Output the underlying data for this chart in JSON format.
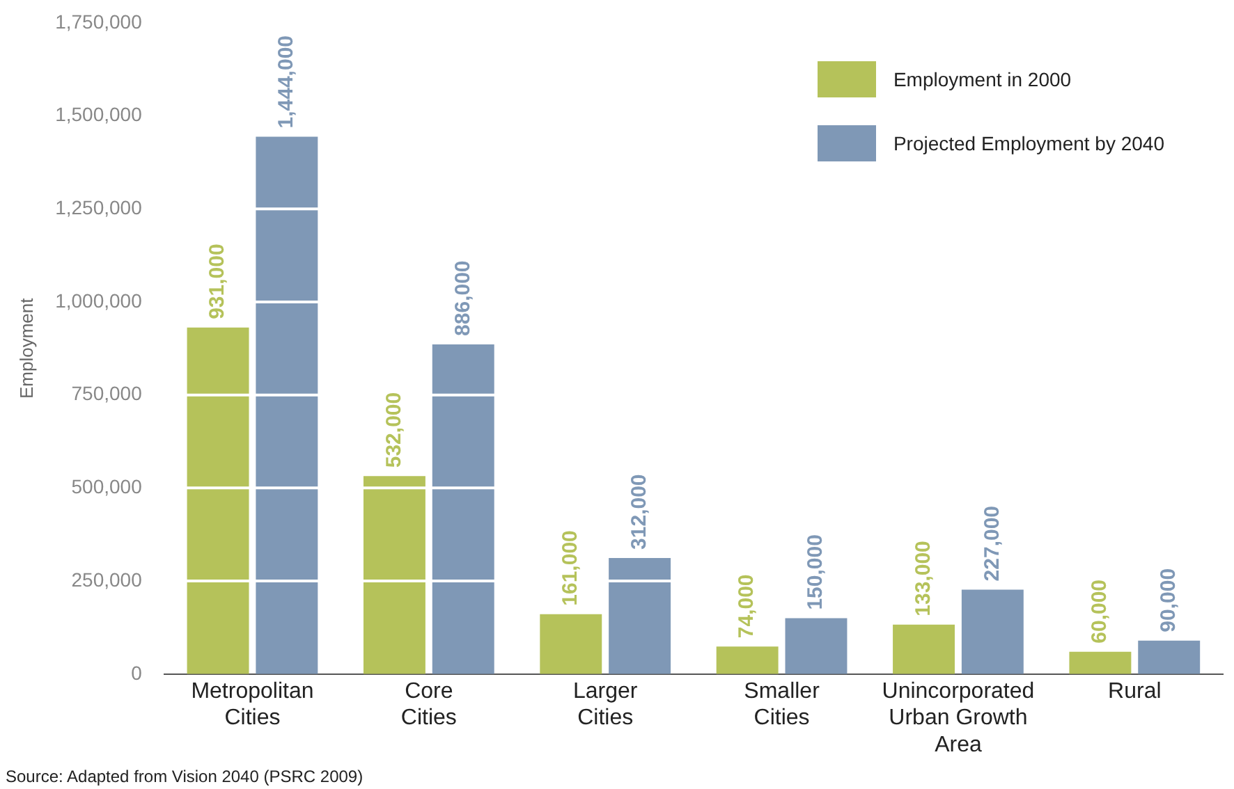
{
  "chart_data": {
    "type": "bar",
    "ylabel": "Employment",
    "categories": [
      "Metropolitan\nCities",
      "Core\nCities",
      "Larger\nCities",
      "Smaller\nCities",
      "Unincorporated\nUrban Growth\nArea",
      "Rural"
    ],
    "series": [
      {
        "name": "Employment in 2000",
        "color": "#b5c25a",
        "values": [
          931000,
          532000,
          161000,
          74000,
          133000,
          60000
        ],
        "value_labels": [
          "931,000",
          "532,000",
          "161,000",
          "74,000",
          "133,000",
          "60,000"
        ]
      },
      {
        "name": "Projected Employment by 2040",
        "color": "#7f98b6",
        "values": [
          1444000,
          886000,
          312000,
          150000,
          227000,
          90000
        ],
        "value_labels": [
          "1,444,000",
          "886,000",
          "312,000",
          "150,000",
          "227,000",
          "90,000"
        ]
      }
    ],
    "ylim": [
      0,
      1750000
    ],
    "yticks": [
      0,
      {
        "value": 250000,
        "label": "250,000"
      },
      {
        "value": 500000,
        "label": "500,000"
      },
      {
        "value": 750000,
        "label": "750,000"
      },
      {
        "value": 1000000,
        "label": "1,000,000"
      },
      {
        "value": 1250000,
        "label": "1,250,000"
      },
      {
        "value": 1500000,
        "label": "1,500,000"
      },
      {
        "value": 1750000,
        "label": "1,750,000"
      }
    ],
    "grid": "y",
    "legend": "top right",
    "annotations": [
      "Source: Adapted from Vision 2040 (PSRC 2009)"
    ]
  }
}
